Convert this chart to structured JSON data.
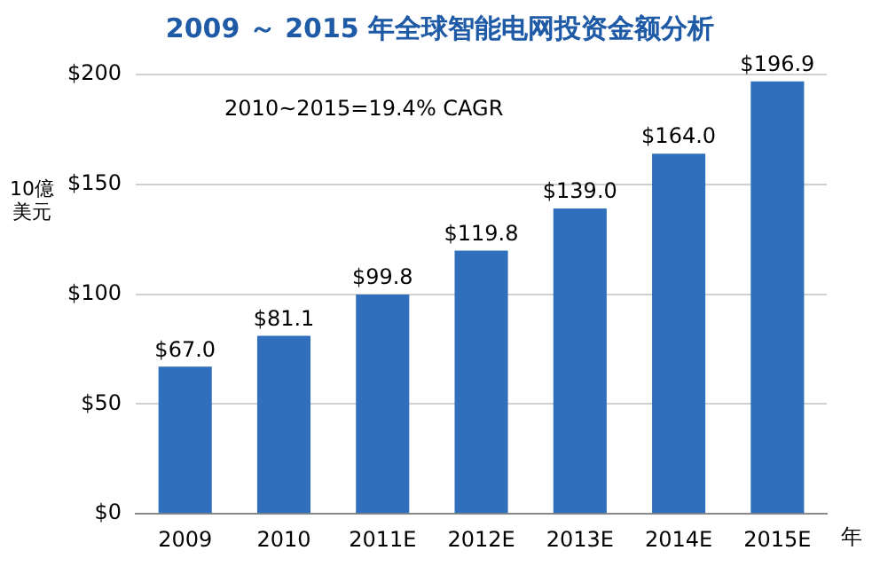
{
  "chart_data": {
    "type": "bar",
    "title": "2009 ～ 2015 年全球智能电网投资金额分析",
    "ylabel": "10億美元",
    "xlabel": "年",
    "categories": [
      "2009",
      "2010",
      "2011E",
      "2012E",
      "2013E",
      "2014E",
      "2015E"
    ],
    "values": [
      67.0,
      81.1,
      99.8,
      119.8,
      139.0,
      164.0,
      196.9
    ],
    "value_labels": [
      "$67.0",
      "$81.1",
      "$99.8",
      "$119.8",
      "$139.0",
      "$164.0",
      "$196.9"
    ],
    "color": "#2f6fbb",
    "ylim": [
      0,
      200
    ],
    "yticks": [
      {
        "value": 0,
        "label": "$0"
      },
      {
        "value": 50,
        "label": "$50"
      },
      {
        "value": 100,
        "label": "$100"
      },
      {
        "value": 150,
        "label": "$150"
      },
      {
        "value": 200,
        "label": "$200"
      }
    ],
    "grid": "y",
    "legend": false,
    "annotations": [
      "2010~2015=19.4% CAGR"
    ]
  }
}
